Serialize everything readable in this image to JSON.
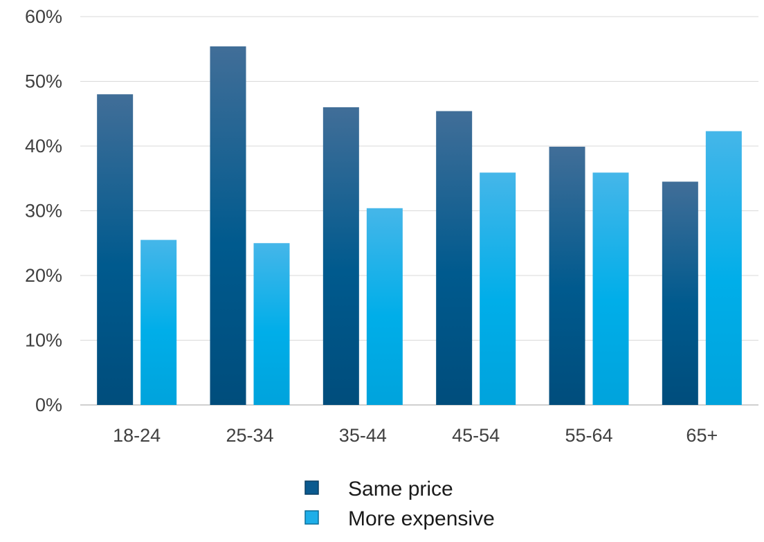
{
  "chart_data": {
    "type": "bar",
    "categories": [
      "18-24",
      "25-34",
      "35-44",
      "45-54",
      "55-64",
      "65+"
    ],
    "series": [
      {
        "name": "Same price",
        "values": [
          48.0,
          55.4,
          46.0,
          45.4,
          39.9,
          34.5
        ],
        "color": "#0b5a8f"
      },
      {
        "name": "More expensive",
        "values": [
          25.5,
          25.0,
          30.4,
          35.9,
          35.9,
          42.3
        ],
        "color": "#1eaee8"
      }
    ],
    "ylim": [
      0,
      60
    ],
    "yticks": [
      0,
      10,
      20,
      30,
      40,
      50,
      60
    ],
    "ytick_format": "percent",
    "grid": true,
    "legend_position": "bottom"
  }
}
